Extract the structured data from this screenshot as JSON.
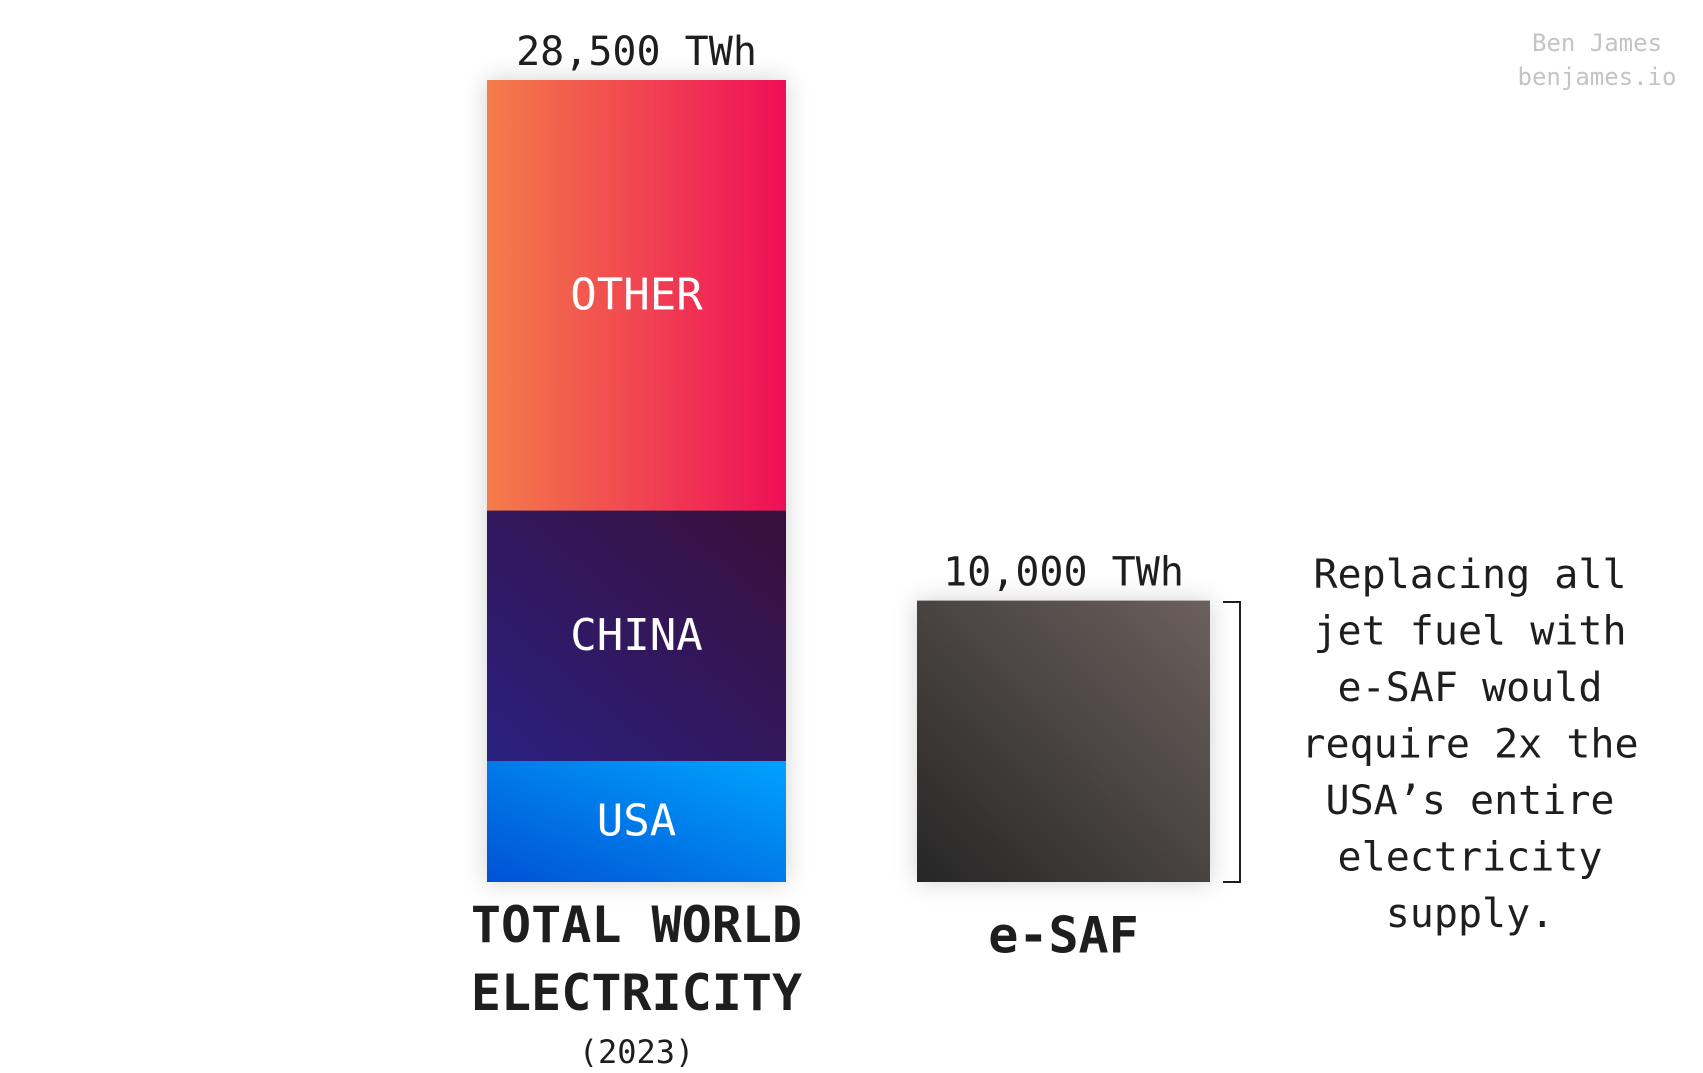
{
  "chart_data": {
    "type": "stacked-bar",
    "categories": [
      "TOTAL WORLD ELECTRICITY",
      "e-SAF"
    ],
    "category_notes": [
      "(2023)",
      null
    ],
    "series": [
      {
        "name": "USA",
        "color": [
          "#0052d4",
          "#00a3ff"
        ],
        "values": [
          4300,
          null
        ]
      },
      {
        "name": "CHINA",
        "color": [
          "#2a2080",
          "#3a0f3a"
        ],
        "values": [
          8900,
          null
        ]
      },
      {
        "name": "OTHER",
        "color": [
          "#f47c4a",
          "#ee0f57"
        ],
        "values": [
          15300,
          null
        ]
      },
      {
        "name": "e-SAF",
        "color": [
          "#262626",
          "#6b605c"
        ],
        "values": [
          null,
          10000
        ]
      }
    ],
    "totals": [
      28500,
      10000
    ],
    "total_labels": [
      "28,500 TWh",
      "10,000 TWh"
    ],
    "annotation_lines": [
      "Replacing all",
      "jet fuel with",
      "e-SAF would",
      "require 2x the",
      "USA’s entire",
      "electricity",
      "supply."
    ],
    "credit_lines": [
      "Ben James",
      "benjames.io"
    ]
  }
}
